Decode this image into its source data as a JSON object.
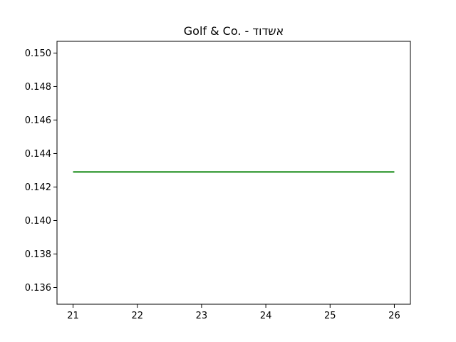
{
  "chart_data": {
    "type": "line",
    "title": "Golf & Co. - אשדוד",
    "xlabel": "",
    "ylabel": "",
    "x": [
      21,
      22,
      23,
      24,
      25,
      26
    ],
    "series": [
      {
        "values": [
          0.1429,
          0.1429,
          0.1429,
          0.1429,
          0.1429,
          0.1429
        ],
        "color": "#008000"
      }
    ],
    "xlim": [
      20.75,
      26.25
    ],
    "ylim": [
      0.135,
      0.1507
    ],
    "xticks": [
      21,
      22,
      23,
      24,
      25,
      26
    ],
    "yticks": [
      0.136,
      0.138,
      0.14,
      0.142,
      0.144,
      0.146,
      0.148,
      0.15
    ],
    "xtick_labels": [
      "21",
      "22",
      "23",
      "24",
      "25",
      "26"
    ],
    "ytick_labels": [
      "0.136",
      "0.138",
      "0.140",
      "0.142",
      "0.144",
      "0.146",
      "0.148",
      "0.150"
    ],
    "grid": false,
    "legend": null
  }
}
